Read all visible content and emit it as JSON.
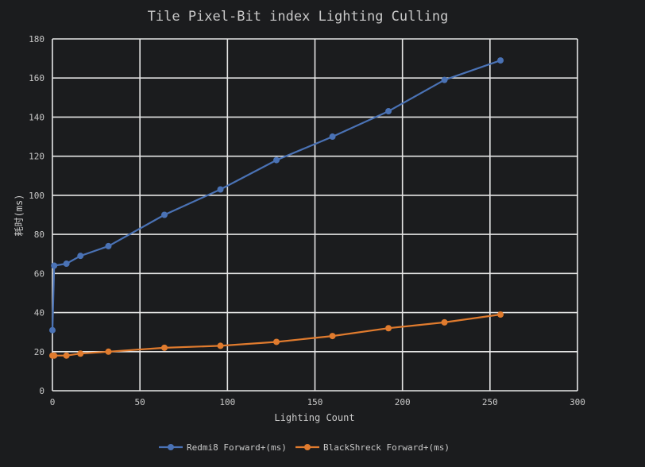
{
  "chart_data": {
    "type": "line",
    "title": "Tile Pixel-Bit index Lighting Culling",
    "xlabel": "Lighting Count",
    "ylabel": "耗时(ms)",
    "xlim": [
      0,
      300
    ],
    "ylim": [
      0,
      180
    ],
    "x_ticks": [
      "0",
      "50",
      "100",
      "150",
      "200",
      "250",
      "300"
    ],
    "y_ticks": [
      "0",
      "20",
      "40",
      "60",
      "80",
      "100",
      "120",
      "140",
      "160",
      "180"
    ],
    "grid": true,
    "legend_position": "bottom",
    "series": [
      {
        "name": "Redmi8 Forward+(ms)",
        "color": "#4a72b5",
        "x": [
          0,
          1,
          8,
          16,
          32,
          64,
          96,
          128,
          160,
          192,
          224,
          256
        ],
        "y": [
          31,
          64,
          65,
          69,
          74,
          90,
          103,
          118,
          130,
          143,
          159,
          169
        ]
      },
      {
        "name": "BlackShreck Forward+(ms)",
        "color": "#e07b2e",
        "x": [
          0,
          1,
          8,
          16,
          32,
          64,
          96,
          128,
          160,
          192,
          224,
          256
        ],
        "y": [
          18,
          18,
          18,
          19,
          20,
          22,
          23,
          25,
          28,
          32,
          35,
          39
        ]
      }
    ]
  }
}
